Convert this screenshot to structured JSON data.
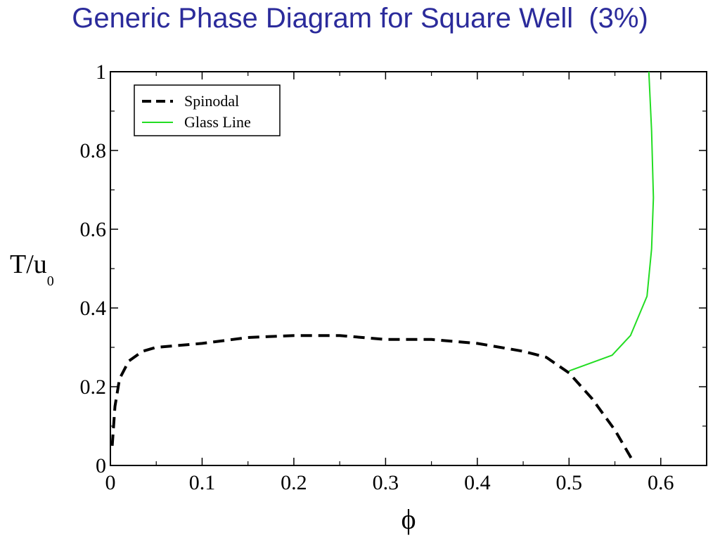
{
  "slide": {
    "title": "Generic Phase Diagram for Square Well  (3%)"
  },
  "chart_data": {
    "type": "line",
    "xlabel": "ϕ",
    "ylabel": "T/u",
    "ylabel_subscript": "0",
    "xlim": [
      0,
      0.65
    ],
    "ylim": [
      0,
      1
    ],
    "xticks": [
      {
        "value": 0,
        "label": "0"
      },
      {
        "value": 0.1,
        "label": "0.1"
      },
      {
        "value": 0.2,
        "label": "0.2"
      },
      {
        "value": 0.3,
        "label": "0.3"
      },
      {
        "value": 0.4,
        "label": "0.4"
      },
      {
        "value": 0.5,
        "label": "0.5"
      },
      {
        "value": 0.6,
        "label": "0.6"
      }
    ],
    "yticks": [
      {
        "value": 0,
        "label": "0"
      },
      {
        "value": 0.2,
        "label": "0.2"
      },
      {
        "value": 0.4,
        "label": "0.4"
      },
      {
        "value": 0.6,
        "label": "0.6"
      },
      {
        "value": 0.8,
        "label": "0.8"
      },
      {
        "value": 1,
        "label": "1"
      }
    ],
    "legend_position": "top-left",
    "grid": false,
    "series": [
      {
        "name": "Spinodal",
        "style": "dashed",
        "color": "#000000",
        "x": [
          0.002,
          0.005,
          0.01,
          0.02,
          0.035,
          0.05,
          0.1,
          0.15,
          0.2,
          0.25,
          0.3,
          0.35,
          0.4,
          0.45,
          0.475,
          0.5,
          0.525,
          0.55,
          0.57
        ],
        "y": [
          0.05,
          0.15,
          0.22,
          0.265,
          0.29,
          0.3,
          0.31,
          0.325,
          0.33,
          0.33,
          0.32,
          0.32,
          0.31,
          0.29,
          0.275,
          0.235,
          0.17,
          0.09,
          0.01
        ]
      },
      {
        "name": "Glass Line",
        "style": "solid",
        "color": "#22dd22",
        "x": [
          0.5,
          0.547,
          0.567,
          0.585,
          0.59,
          0.592,
          0.59,
          0.588,
          0.587
        ],
        "y": [
          0.24,
          0.28,
          0.33,
          0.43,
          0.55,
          0.68,
          0.85,
          0.95,
          1.0
        ]
      }
    ]
  }
}
